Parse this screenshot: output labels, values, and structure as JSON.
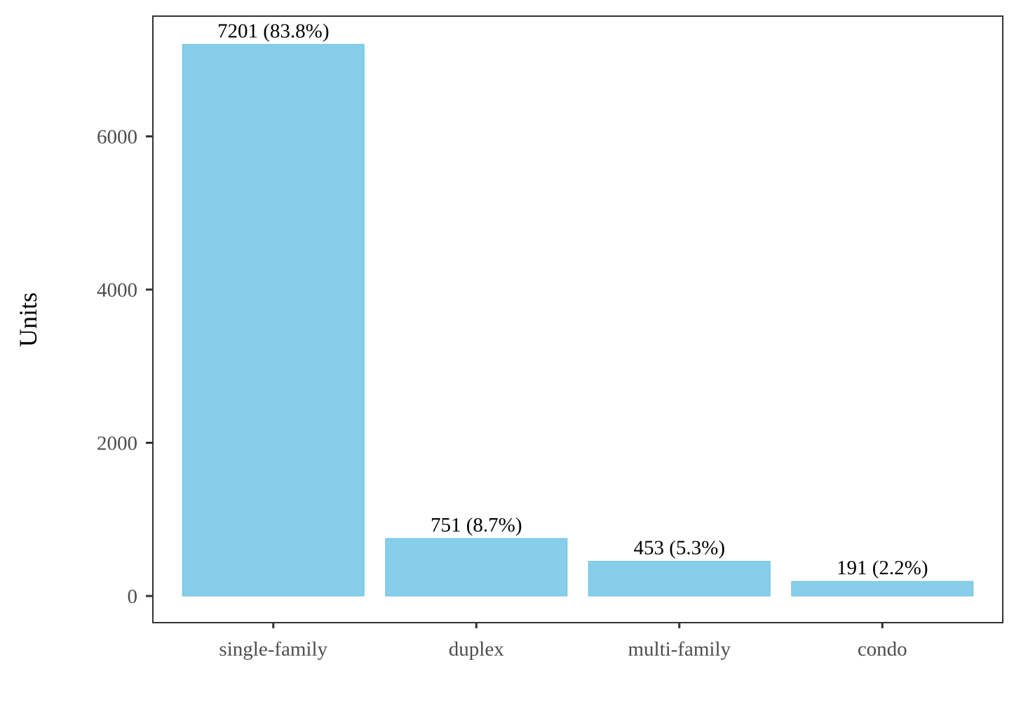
{
  "chart_data": {
    "type": "bar",
    "categories": [
      "single-family",
      "duplex",
      "multi-family",
      "condo"
    ],
    "values": [
      7201,
      751,
      453,
      191
    ],
    "data_labels": [
      "7201 (83.8%)",
      "751 (8.7%)",
      "453 (5.3%)",
      "191 (2.2%)"
    ],
    "title": "",
    "xlabel": "",
    "ylabel": "Units",
    "ylim": [
      0,
      7200
    ],
    "yticks": [
      0,
      2000,
      4000,
      6000
    ],
    "ytick_labels": [
      "0",
      "2000",
      "4000",
      "6000"
    ],
    "grid": false,
    "legend": "none",
    "colors": {
      "bar": "#87CEEB",
      "bar_edge": "#6cc0e5",
      "panel_border": "#333333",
      "tick": "#333333",
      "tick_label": "#4d4d4d"
    }
  }
}
